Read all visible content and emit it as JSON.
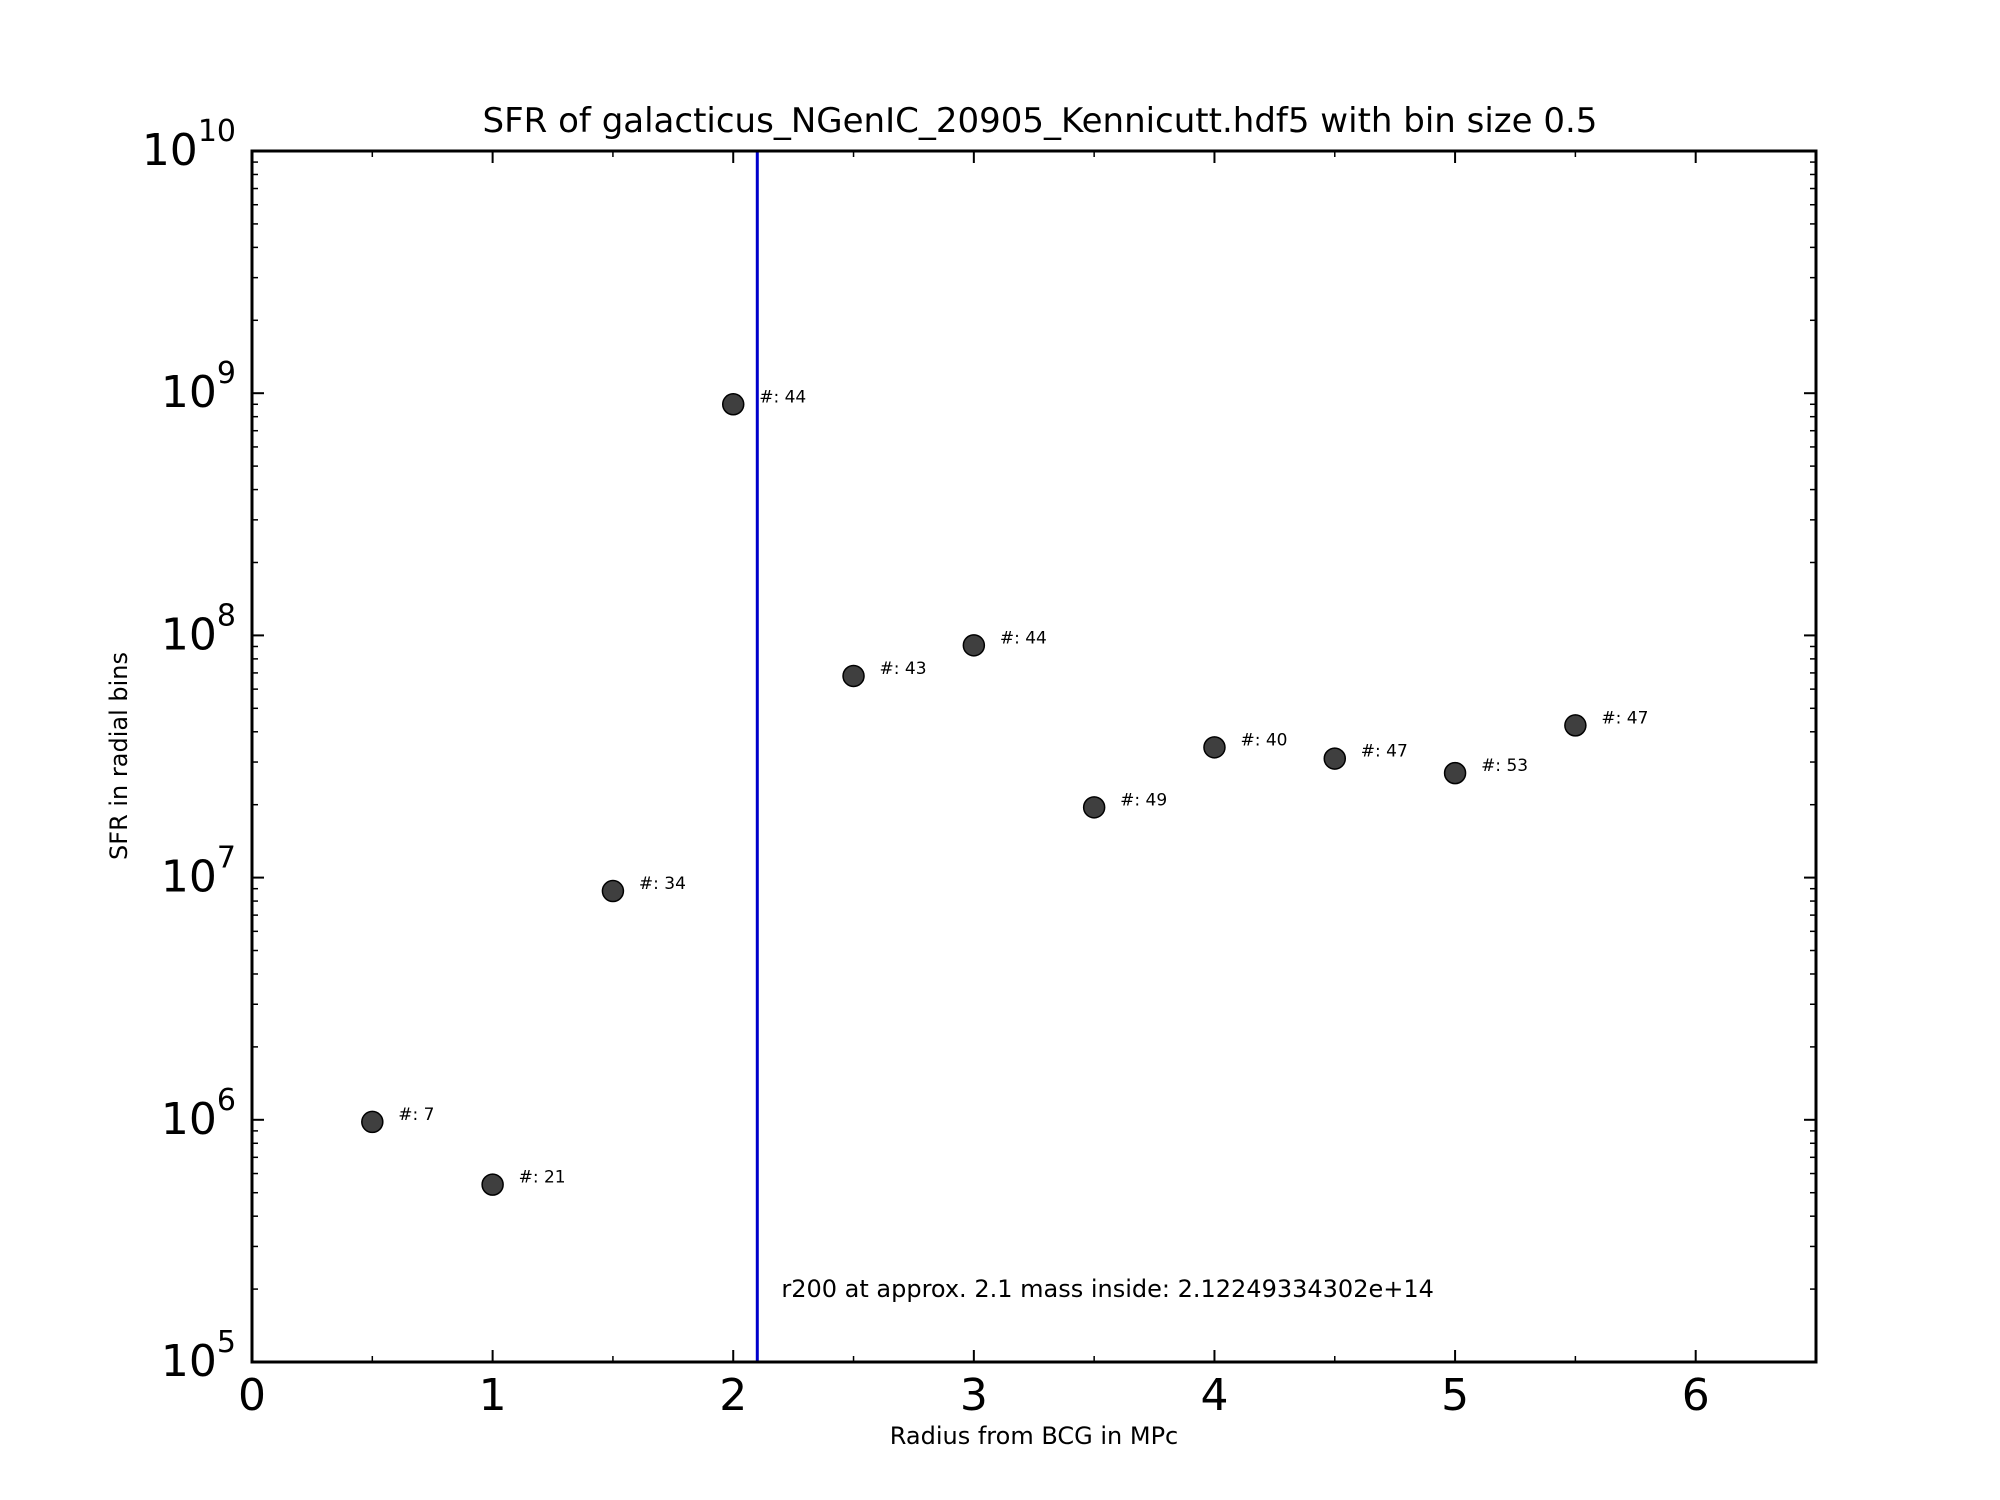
{
  "chart_data": {
    "type": "scatter",
    "title": "SFR of galacticus_NGenIC_20905_Kennicutt.hdf5 with bin size 0.5",
    "xlabel": "Radius from BCG in MPc",
    "ylabel": "SFR in radial bins",
    "xlim": [
      0,
      6.5
    ],
    "ylim": [
      100000,
      10000000000
    ],
    "yscale": "log",
    "grid": false,
    "x_ticks": [
      "0",
      "1",
      "2",
      "3",
      "4",
      "5",
      "6"
    ],
    "y_ticks": [
      {
        "base": "10",
        "exp": "5"
      },
      {
        "base": "10",
        "exp": "6"
      },
      {
        "base": "10",
        "exp": "7"
      },
      {
        "base": "10",
        "exp": "8"
      },
      {
        "base": "10",
        "exp": "9"
      },
      {
        "base": "10",
        "exp": "10"
      }
    ],
    "points": [
      {
        "x": 0.5,
        "y": 980000,
        "label": "#: 7"
      },
      {
        "x": 1.0,
        "y": 540000,
        "label": "#: 21"
      },
      {
        "x": 1.5,
        "y": 8800000,
        "label": "#: 34"
      },
      {
        "x": 2.0,
        "y": 900000000,
        "label": "#: 44"
      },
      {
        "x": 2.5,
        "y": 68000000,
        "label": "#: 43"
      },
      {
        "x": 3.0,
        "y": 91000000,
        "label": "#: 44"
      },
      {
        "x": 3.5,
        "y": 19500000,
        "label": "#: 49"
      },
      {
        "x": 4.0,
        "y": 34500000,
        "label": "#: 40"
      },
      {
        "x": 4.5,
        "y": 31000000,
        "label": "#: 47"
      },
      {
        "x": 5.0,
        "y": 27000000,
        "label": "#: 53"
      },
      {
        "x": 5.5,
        "y": 42500000,
        "label": "#: 47"
      }
    ],
    "vline": {
      "x": 2.1,
      "color": "#0000cc",
      "annotation": "r200 at approx. 2.1 mass inside: 2.12249334302e+14",
      "annotation_x": 2.2,
      "annotation_y": 200000
    },
    "marker_color": "#3f3f3f"
  }
}
